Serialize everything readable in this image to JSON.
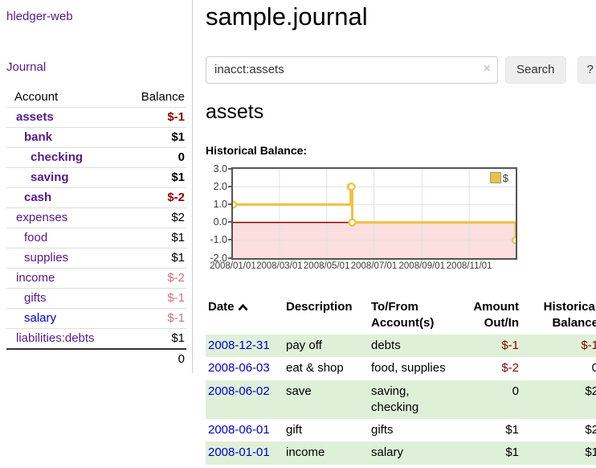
{
  "app": {
    "title": "hledger-web"
  },
  "colors": {
    "link_visited": "#551a8b",
    "link_unvisited": "#0000cc",
    "negative_strong": "#8b0000",
    "negative_muted": "#c4777c",
    "row_stripe": "#dff0d8"
  },
  "sidebar": {
    "journal_link": "Journal",
    "accounts_table": {
      "headers": {
        "account": "Account",
        "balance": "Balance"
      },
      "rows": [
        {
          "account": "assets",
          "balance": "$-1",
          "depth": 1,
          "emphasized": true,
          "balance_tone": "negative-strong",
          "link_style": "visited"
        },
        {
          "account": "bank",
          "balance": "$1",
          "depth": 2,
          "emphasized": true,
          "balance_tone": "normal",
          "link_style": "visited"
        },
        {
          "account": "checking",
          "balance": "0",
          "depth": 3,
          "emphasized": true,
          "balance_tone": "normal",
          "link_style": "visited"
        },
        {
          "account": "saving",
          "balance": "$1",
          "depth": 3,
          "emphasized": true,
          "balance_tone": "normal",
          "link_style": "visited"
        },
        {
          "account": "cash",
          "balance": "$-2",
          "depth": 2,
          "emphasized": true,
          "balance_tone": "negative-strong",
          "link_style": "visited"
        },
        {
          "account": "expenses",
          "balance": "$2",
          "depth": 1,
          "emphasized": false,
          "balance_tone": "normal",
          "link_style": "visited"
        },
        {
          "account": "food",
          "balance": "$1",
          "depth": 2,
          "emphasized": false,
          "balance_tone": "normal",
          "link_style": "visited"
        },
        {
          "account": "supplies",
          "balance": "$1",
          "depth": 2,
          "emphasized": false,
          "balance_tone": "normal",
          "link_style": "visited"
        },
        {
          "account": "income",
          "balance": "$-2",
          "depth": 1,
          "emphasized": false,
          "balance_tone": "negative-soft",
          "link_style": "visited"
        },
        {
          "account": "gifts",
          "balance": "$-1",
          "depth": 2,
          "emphasized": false,
          "balance_tone": "negative-soft",
          "link_style": "visited"
        },
        {
          "account": "salary",
          "balance": "$-1",
          "depth": 2,
          "emphasized": false,
          "balance_tone": "negative-soft",
          "link_style": "unvisited"
        },
        {
          "account": "liabilities:debts",
          "balance": "$1",
          "depth": 1,
          "emphasized": false,
          "balance_tone": "normal",
          "link_style": "visited"
        }
      ],
      "total": "0"
    }
  },
  "main": {
    "title": "sample.journal",
    "search": {
      "value": "inacct:assets",
      "clear_icon": "×",
      "button_label": "Search",
      "help_label": "?"
    },
    "account_heading": "assets",
    "chart_label": "Historical Balance:"
  },
  "chart_data": {
    "type": "line",
    "style": "step",
    "title": "Historical Balance",
    "xlim": [
      "2008-01-01",
      "2008-12-31"
    ],
    "ylim": [
      -2,
      3
    ],
    "x_ticks": [
      "2008/01/01",
      "2008/03/01",
      "2008/05/01",
      "2008/07/01",
      "2008/09/01",
      "2008/11/01"
    ],
    "y_ticks": [
      "3.0",
      "2.0",
      "1.0",
      "0.0",
      "-1.0",
      "-2.0"
    ],
    "grid": true,
    "negative_region_color": "#fbdede",
    "zero_line_color": "#8b0000",
    "legend": {
      "label": "$",
      "position": "top-right"
    },
    "series": [
      {
        "name": "$",
        "color": "#edc240",
        "points": [
          [
            "2008-01-01",
            1
          ],
          [
            "2008-06-01",
            2
          ],
          [
            "2008-06-02",
            2
          ],
          [
            "2008-06-03",
            0
          ],
          [
            "2008-12-31",
            -1
          ]
        ]
      }
    ]
  },
  "register": {
    "headers": {
      "date": "Date",
      "description": "Description",
      "accounts": "To/From Account(s)",
      "amount": "Amount Out/In",
      "balance": "Historical Balance"
    },
    "rows": [
      {
        "date": "2008-12-31",
        "description": "pay off",
        "accounts": "debts",
        "amount": "$-1",
        "amount_negative": true,
        "balance": "$-1",
        "balance_negative": true
      },
      {
        "date": "2008-06-03",
        "description": "eat & shop",
        "accounts": "food, supplies",
        "amount": "$-2",
        "amount_negative": true,
        "balance": "0",
        "balance_negative": false
      },
      {
        "date": "2008-06-02",
        "description": "save",
        "accounts": "saving, checking",
        "amount": "0",
        "amount_negative": false,
        "balance": "$2",
        "balance_negative": false
      },
      {
        "date": "2008-06-01",
        "description": "gift",
        "accounts": "gifts",
        "amount": "$1",
        "amount_negative": false,
        "balance": "$2",
        "balance_negative": false
      },
      {
        "date": "2008-01-01",
        "description": "income",
        "accounts": "salary",
        "amount": "$1",
        "amount_negative": false,
        "balance": "$1",
        "balance_negative": false
      }
    ]
  }
}
